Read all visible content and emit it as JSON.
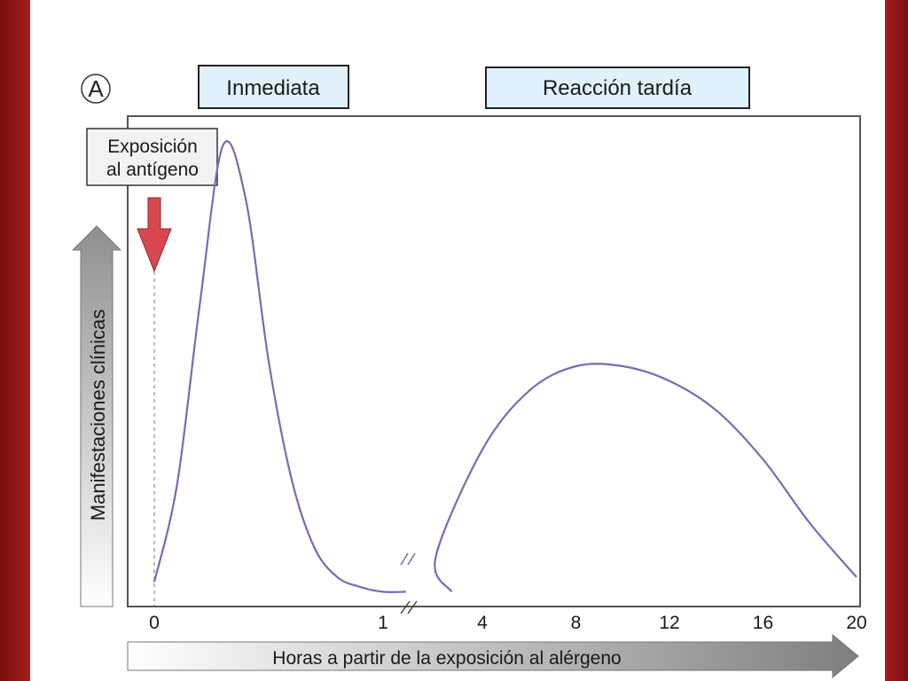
{
  "chart_data": {
    "type": "line",
    "panel_label": "A",
    "phase_labels": {
      "immediate": "Inmediata",
      "late": "Reacción tardía"
    },
    "annotation": {
      "line1": "Exposición",
      "line2": "al antígeno",
      "x": 0
    },
    "ylabel": "Manifestaciones clínicas",
    "xlabel": "Horas a partir de la exposición al alérgeno",
    "x_ticks": [
      "0",
      "1",
      "4",
      "8",
      "12",
      "16",
      "20"
    ],
    "axis_break_after": "1",
    "y_units": "relative (no scale printed)",
    "series": [
      {
        "segment": "immediate",
        "color": "#6f6fb5",
        "x_hours": [
          0,
          0.1,
          0.2,
          0.3,
          0.4,
          0.5,
          0.6,
          0.7,
          0.8,
          0.9,
          1.0,
          1.1
        ],
        "y": [
          0.05,
          0.25,
          0.62,
          0.94,
          0.83,
          0.5,
          0.26,
          0.12,
          0.06,
          0.04,
          0.03,
          0.03
        ]
      },
      {
        "segment": "late",
        "color": "#6f6fb5",
        "x_hours": [
          1.3,
          2,
          4,
          6,
          8,
          10,
          12,
          14,
          16,
          18,
          20
        ],
        "y": [
          0.03,
          0.1,
          0.32,
          0.44,
          0.49,
          0.49,
          0.46,
          0.4,
          0.3,
          0.17,
          0.06
        ]
      }
    ],
    "colors": {
      "arrow_red": "#d9474f",
      "axis_arrow_gray": "#8a8a8a",
      "phase_box_fill": "#dff2fb"
    }
  }
}
